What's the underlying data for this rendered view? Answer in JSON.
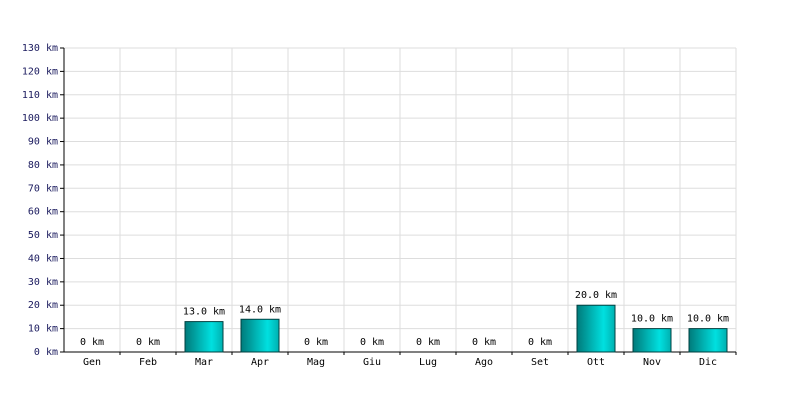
{
  "chart_data": {
    "type": "bar",
    "categories": [
      "Gen",
      "Feb",
      "Mar",
      "Apr",
      "Mag",
      "Giu",
      "Lug",
      "Ago",
      "Set",
      "Ott",
      "Nov",
      "Dic"
    ],
    "values": [
      0,
      0,
      13,
      14,
      0,
      0,
      0,
      0,
      0,
      20,
      10,
      10
    ],
    "value_labels": [
      "0 km",
      "0 km",
      "13.0 km",
      "14.0 km",
      "0 km",
      "0 km",
      "0 km",
      "0 km",
      "0 km",
      "20.0 km",
      "10.0 km",
      "10.0 km"
    ],
    "color": "#00e0e0",
    "ylim": [
      0,
      130
    ],
    "yticks": [
      {
        "value": 0,
        "label": "0 km"
      },
      {
        "value": 10,
        "label": "10 km"
      },
      {
        "value": 20,
        "label": "20 km"
      },
      {
        "value": 30,
        "label": "30 km"
      },
      {
        "value": 40,
        "label": "40 km"
      },
      {
        "value": 50,
        "label": "50 km"
      },
      {
        "value": 60,
        "label": "60 km"
      },
      {
        "value": 70,
        "label": "70 km"
      },
      {
        "value": 80,
        "label": "80 km"
      },
      {
        "value": 90,
        "label": "90 km"
      },
      {
        "value": 100,
        "label": "100 km"
      },
      {
        "value": 110,
        "label": "110 km"
      },
      {
        "value": 120,
        "label": "120 km"
      },
      {
        "value": 130,
        "label": "130 km"
      }
    ],
    "grid": true
  }
}
